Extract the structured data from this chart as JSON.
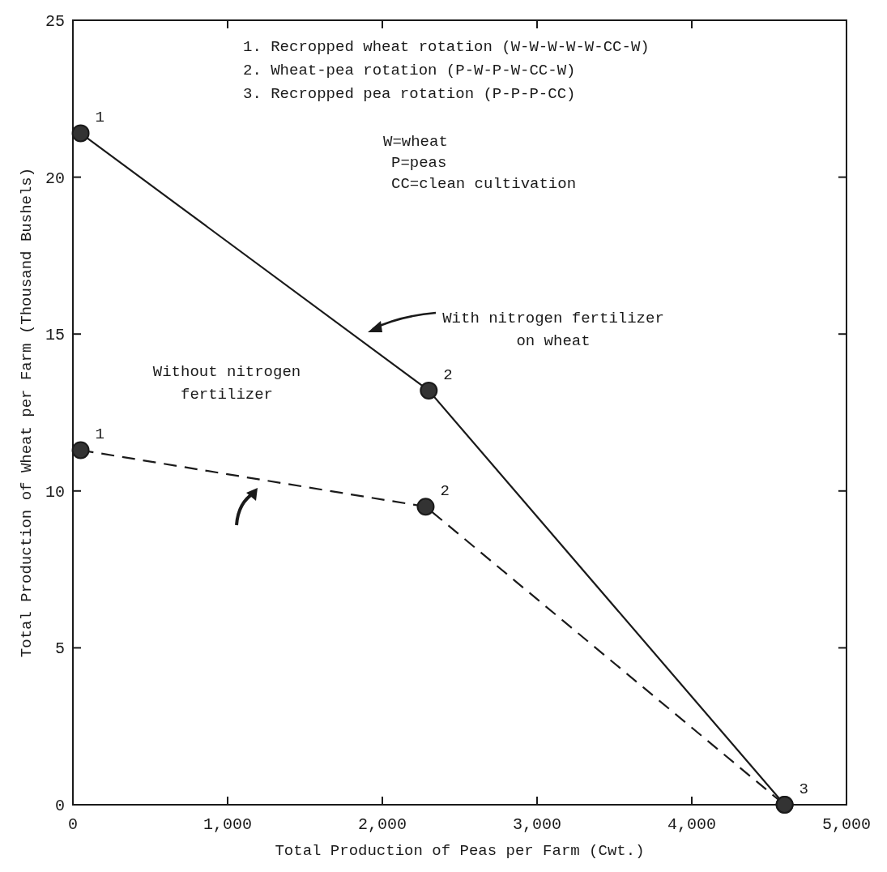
{
  "chart_data": {
    "type": "line",
    "xlabel": "Total Production of Peas per Farm (Cwt.)",
    "ylabel": "Total Production of Wheat per Farm (Thousand Bushels)",
    "xlim": [
      0,
      5000
    ],
    "ylim": [
      0,
      25
    ],
    "xticks": [
      0,
      {
        "value": 1000,
        "label": "1,000"
      },
      {
        "value": 2000,
        "label": "2,000"
      },
      {
        "value": 3000,
        "label": "3,000"
      },
      {
        "value": 4000,
        "label": "4,000"
      },
      {
        "value": 5000,
        "label": "5,000"
      }
    ],
    "yticks": [
      0,
      5,
      10,
      15,
      20,
      25
    ],
    "marker": "circle",
    "series": [
      {
        "color": "#1a1a1a",
        "line_style": "solid",
        "x": [
          50,
          2300,
          4600
        ],
        "values": [
          21.4,
          13.2,
          0
        ]
      },
      {
        "color": "#1a1a1a",
        "line_style": "dashed",
        "x": [
          50,
          2280,
          4600
        ],
        "values": [
          11.3,
          9.5,
          0
        ]
      }
    ],
    "annotations": [
      "1.  Recropped wheat rotation (W-W-W-W-W-CC-W)",
      "2.  Wheat-pea rotation (P-W-P-W-CC-W)",
      "3.  Recropped pea rotation (P-P-P-CC)",
      "W=wheat",
      "P=peas",
      "CC=clean cultivation",
      "With nitrogen fertilizer on wheat",
      "Without nitrogen fertilizer",
      {
        "text": "1",
        "x": 50,
        "y": 21.4
      },
      {
        "text": "2",
        "x": 2300,
        "y": 13.2
      },
      {
        "text": "3",
        "x": 4600,
        "y": 0
      },
      {
        "text": "1",
        "x": 50,
        "y": 11.3
      },
      {
        "text": "2",
        "x": 2280,
        "y": 9.5
      }
    ]
  }
}
